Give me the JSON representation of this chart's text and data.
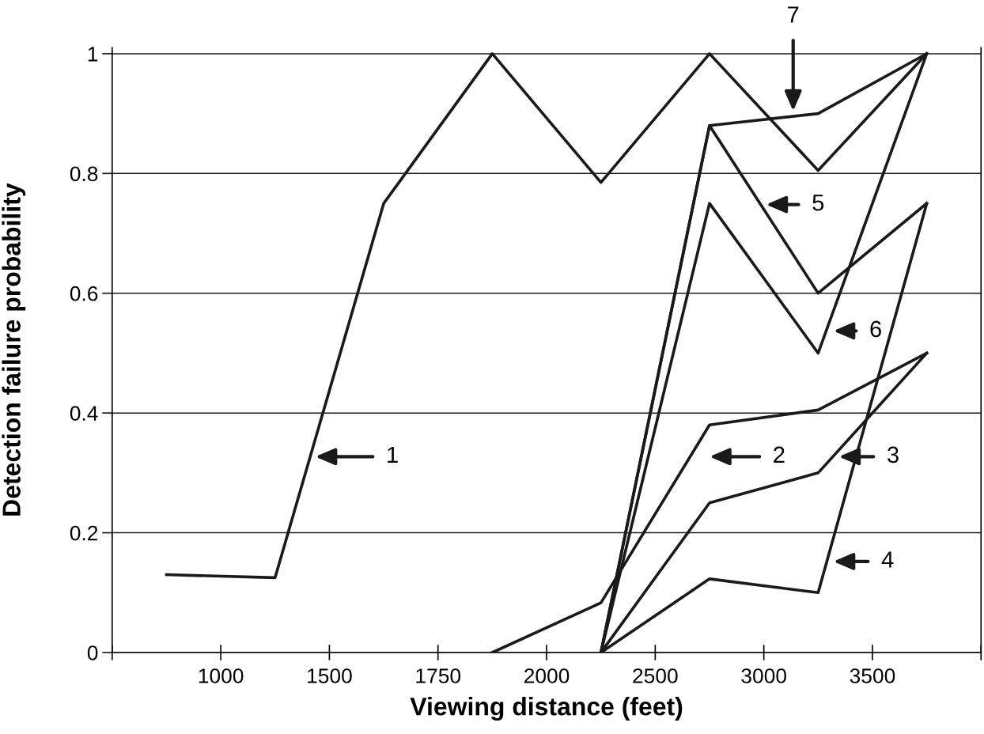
{
  "chart_data": {
    "type": "line",
    "xlabel": "Viewing distance (feet)",
    "ylabel": "Detection failure probability",
    "categories": [
      null,
      null,
      null,
      null,
      null,
      null,
      null,
      null
    ],
    "ylim": [
      0,
      1.01
    ],
    "yticks": [
      0,
      {
        "value": 0.2,
        "label": "0.2"
      },
      {
        "value": 0.4,
        "label": "0.4"
      },
      {
        "value": 0.6,
        "label": "0.6"
      },
      {
        "value": 0.8,
        "label": "0.8"
      },
      1
    ],
    "grid": "y",
    "marker": "none",
    "line_style": "solid",
    "series": [
      {
        "color": "#1a1a1a",
        "values": [
          0.13,
          0.125,
          0.75,
          1.0,
          0.785,
          1.0,
          0.805,
          1.0
        ]
      },
      {
        "color": "#1a1a1a",
        "values": [
          null,
          null,
          null,
          0.0,
          0.083,
          0.38,
          0.405,
          0.5
        ]
      },
      {
        "color": "#1a1a1a",
        "values": [
          null,
          null,
          null,
          null,
          0.0,
          0.25,
          0.3,
          0.5
        ]
      },
      {
        "color": "#1a1a1a",
        "values": [
          null,
          null,
          null,
          null,
          0.0,
          0.123,
          0.1,
          0.75
        ]
      },
      {
        "color": "#1a1a1a",
        "values": [
          null,
          null,
          null,
          null,
          0.0,
          0.88,
          0.6,
          0.75
        ]
      },
      {
        "color": "#1a1a1a",
        "values": [
          null,
          null,
          null,
          null,
          0.0,
          0.75,
          0.5,
          1.0
        ]
      },
      {
        "color": "#1a1a1a",
        "values": [
          null,
          null,
          null,
          null,
          0.0,
          0.88,
          0.9,
          1.0
        ]
      }
    ],
    "annotations": [
      "1",
      "2",
      "3",
      "4",
      "5",
      "6",
      "7",
      "1000",
      "1500",
      "1750",
      "2000",
      "2500",
      "3000",
      "3500"
    ]
  }
}
